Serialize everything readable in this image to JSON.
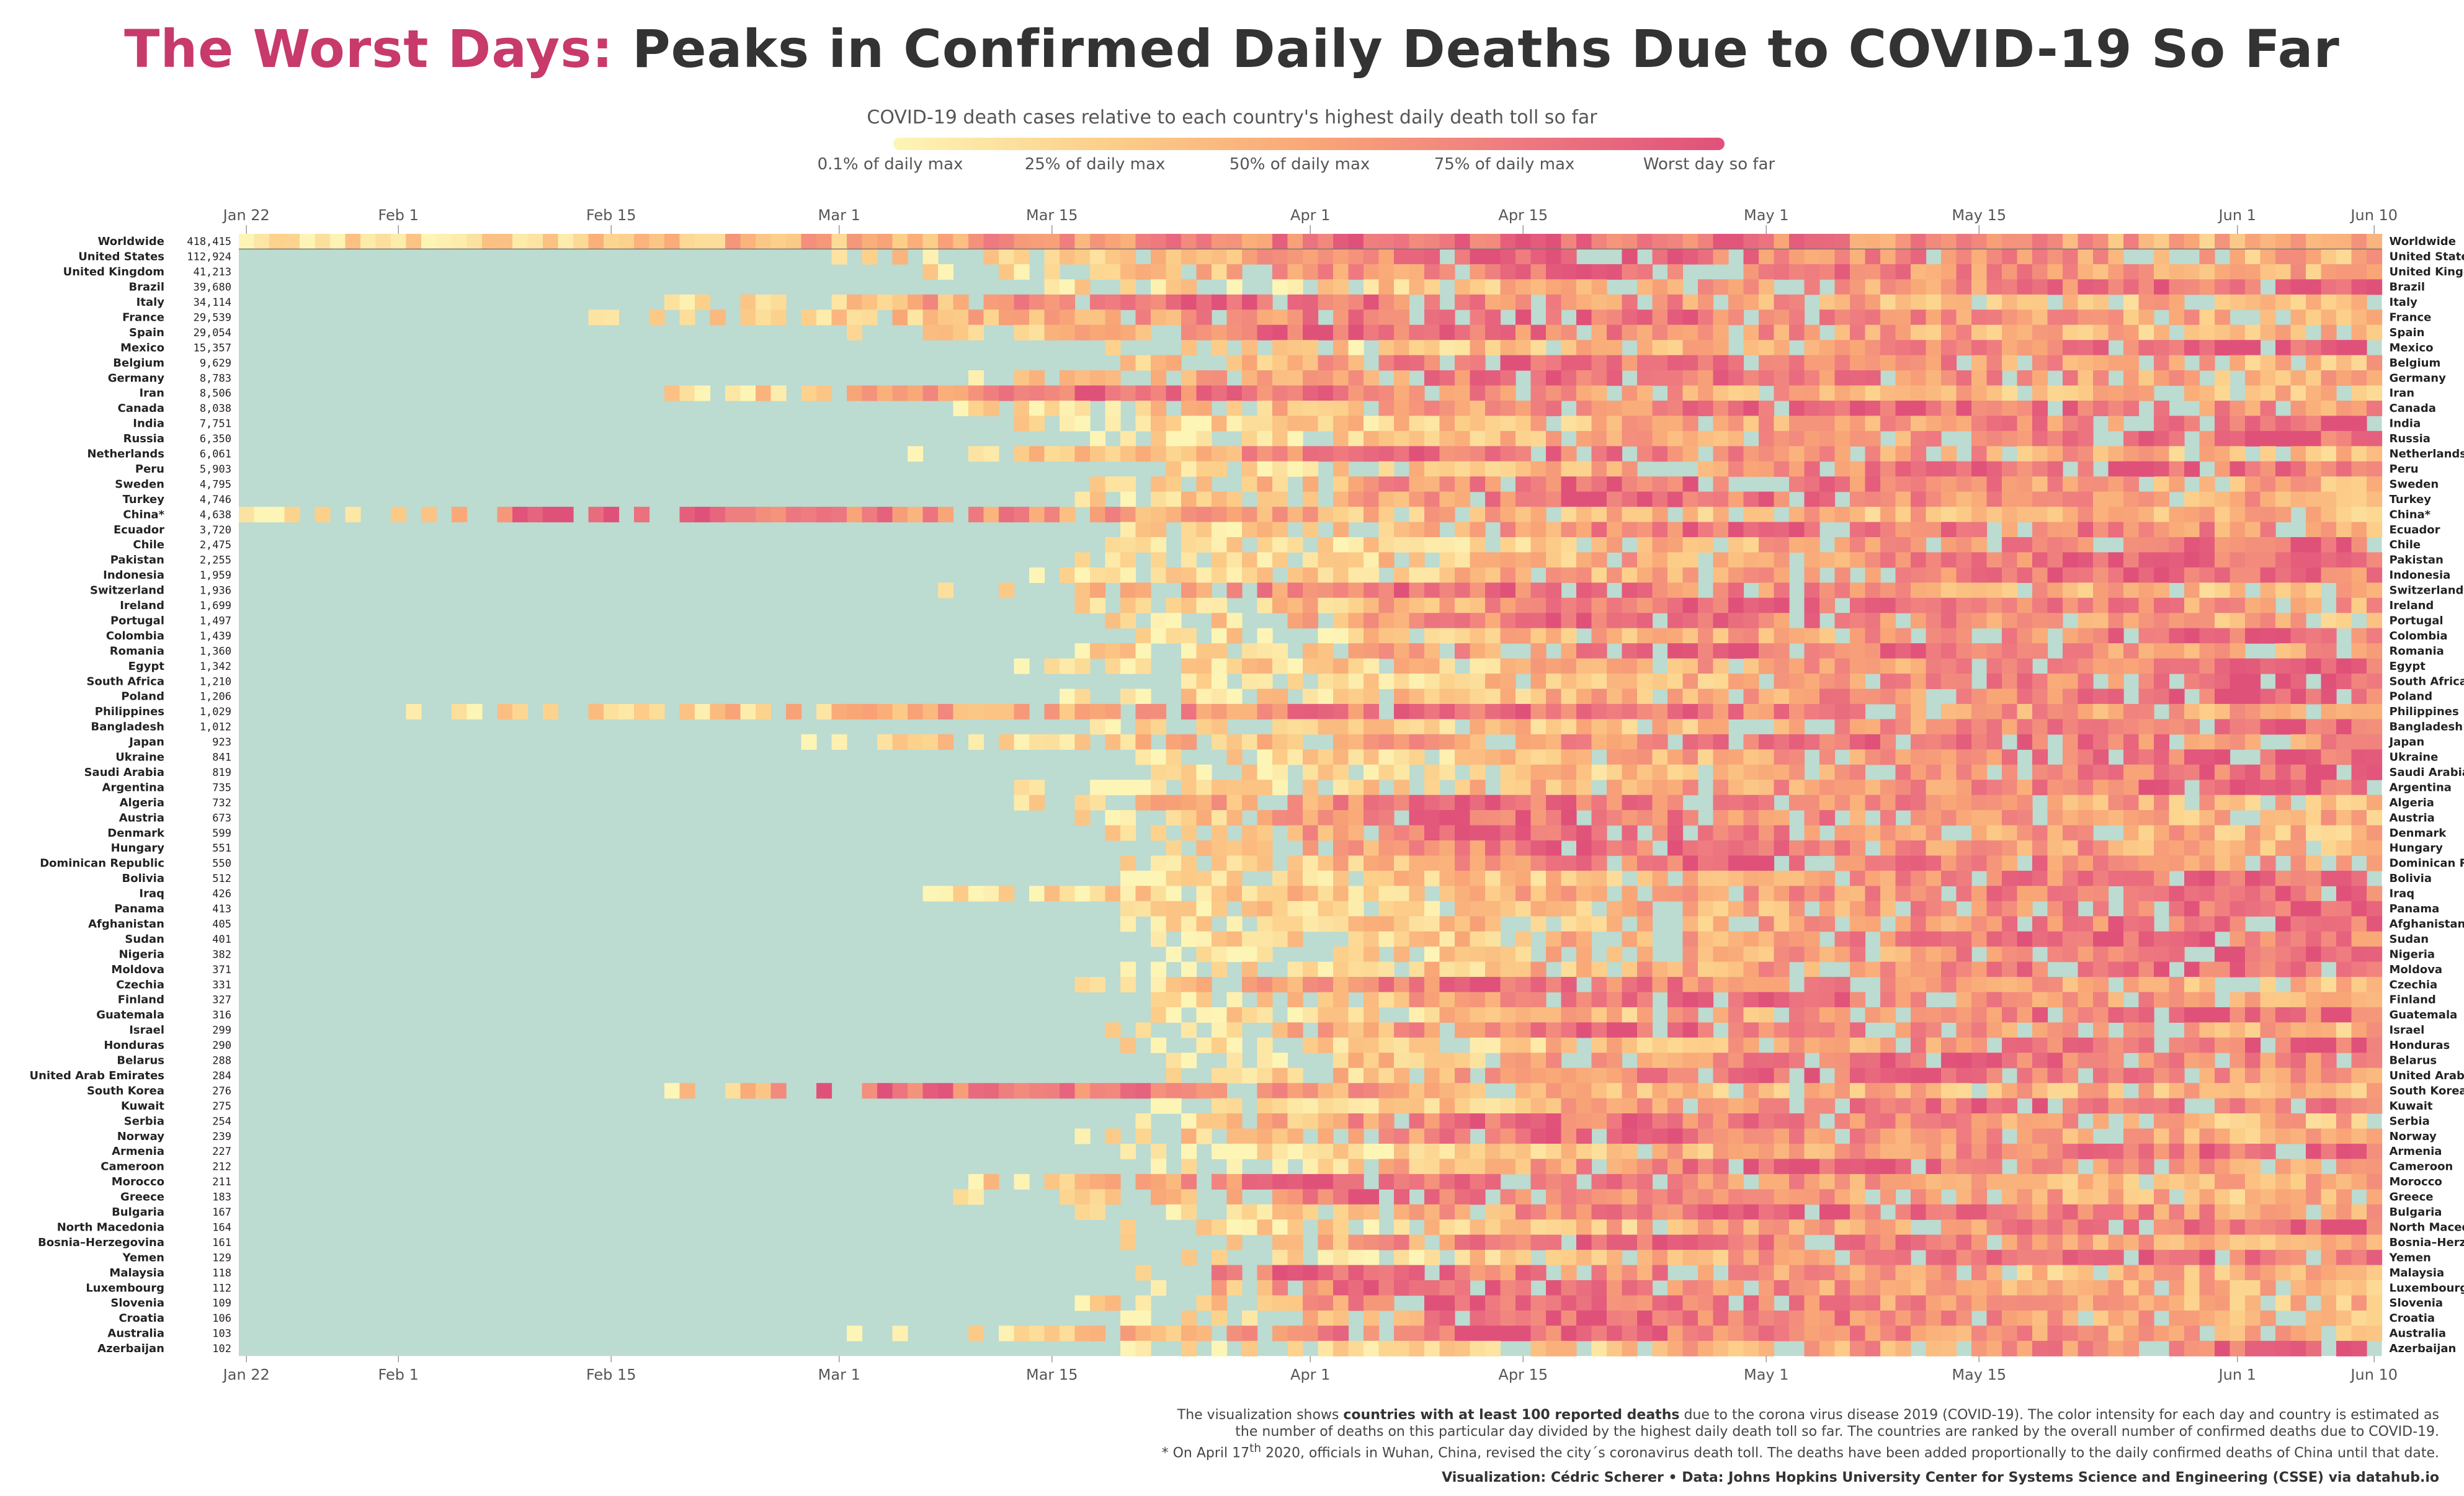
{
  "title": {
    "accent": "The Worst Days:",
    "main": " Peaks in Confirmed Daily Deaths Due to COVID-19 So Far"
  },
  "legend": {
    "title": "COVID-19 death cases relative to each country's highest daily death toll so far",
    "labels": [
      "0.1% of daily max",
      "25% of daily max",
      "50% of daily max",
      "75% of daily max",
      "Worst day so far"
    ],
    "colors": [
      "#fdf5b6",
      "#fcd08a",
      "#f9a777",
      "#ee7a80",
      "#e0517a"
    ]
  },
  "caption": {
    "p1_pre": "The visualization shows ",
    "p1_bold": "countries with at least 100 reported deaths",
    "p1_post": " due to the corona virus disease 2019 (COVID-19). The color intensity for each day and country is estimated as",
    "p2": "the number of deaths on this particular day divided by the highest daily death toll so far. The countries are ranked by the overall number of confirmed deaths due to COVID-19.",
    "p3_pre": "* On April 17",
    "p3_sup": "th",
    "p3_post": " 2020, officials in Wuhan, China, revised the city´s coronavirus death toll. The deaths have been added proportionally to the daily confirmed deaths of China until that date."
  },
  "credit": "Visualization: Cédric Scherer • Data: Johns Hopkins University Center for Systems Science and Engineering (CSSE) via datahub.io",
  "chart_data": {
    "type": "heatmap",
    "x_start": "Jan 22",
    "x_end": "Jun 10",
    "n_days": 141,
    "x_ticks": [
      {
        "label": "Jan 22",
        "day": 0
      },
      {
        "label": "Feb 1",
        "day": 10
      },
      {
        "label": "Feb 15",
        "day": 24
      },
      {
        "label": "Mar 1",
        "day": 39
      },
      {
        "label": "Mar 15",
        "day": 53
      },
      {
        "label": "Apr 1",
        "day": 70
      },
      {
        "label": "Apr 15",
        "day": 84
      },
      {
        "label": "May 1",
        "day": 100
      },
      {
        "label": "May 15",
        "day": 114
      },
      {
        "label": "Jun 1",
        "day": 131
      },
      {
        "label": "Jun 10",
        "day": 140
      }
    ],
    "no_death_color": "#bcdbd1",
    "countries": [
      {
        "name": "Worldwide",
        "total": "418,415",
        "start": 0,
        "peak": 84
      },
      {
        "name": "United States",
        "total": "112,924",
        "start": 37,
        "peak": 86
      },
      {
        "name": "United Kingdom",
        "total": "41,213",
        "start": 44,
        "peak": 88
      },
      {
        "name": "Brazil",
        "total": "39,680",
        "start": 53,
        "peak": 136
      },
      {
        "name": "Italy",
        "total": "34,114",
        "start": 28,
        "peak": 62
      },
      {
        "name": "France",
        "total": "29,539",
        "start": 22,
        "peak": 84
      },
      {
        "name": "Spain",
        "total": "29,054",
        "start": 40,
        "peak": 71
      },
      {
        "name": "Mexico",
        "total": "15,357",
        "start": 57,
        "peak": 134
      },
      {
        "name": "Belgium",
        "total": "9,629",
        "start": 53,
        "peak": 84
      },
      {
        "name": "Germany",
        "total": "8,783",
        "start": 47,
        "peak": 86
      },
      {
        "name": "Iran",
        "total": "8,506",
        "start": 28,
        "peak": 56
      },
      {
        "name": "Canada",
        "total": "8,038",
        "start": 47,
        "peak": 106
      },
      {
        "name": "India",
        "total": "7,751",
        "start": 50,
        "peak": 139
      },
      {
        "name": "Russia",
        "total": "6,350",
        "start": 56,
        "peak": 136
      },
      {
        "name": "Netherlands",
        "total": "6,061",
        "start": 44,
        "peak": 77
      },
      {
        "name": "Peru",
        "total": "5,903",
        "start": 57,
        "peak": 124
      },
      {
        "name": "Sweden",
        "total": "4,795",
        "start": 53,
        "peak": 90
      },
      {
        "name": "Turkey",
        "total": "4,746",
        "start": 55,
        "peak": 89
      },
      {
        "name": "China*",
        "total": "4,638",
        "start": 0,
        "peak": 21
      },
      {
        "name": "Ecuador",
        "total": "3,720",
        "start": 57,
        "peak": 102
      },
      {
        "name": "Chile",
        "total": "2,475",
        "start": 57,
        "peak": 138
      },
      {
        "name": "Pakistan",
        "total": "2,255",
        "start": 55,
        "peak": 128
      },
      {
        "name": "Indonesia",
        "total": "1,959",
        "start": 49,
        "peak": 126
      },
      {
        "name": "Switzerland",
        "total": "1,936",
        "start": 43,
        "peak": 76
      },
      {
        "name": "Ireland",
        "total": "1,699",
        "start": 55,
        "peak": 98
      },
      {
        "name": "Portugal",
        "total": "1,497",
        "start": 57,
        "peak": 88
      },
      {
        "name": "Colombia",
        "total": "1,439",
        "start": 58,
        "peak": 134
      },
      {
        "name": "Romania",
        "total": "1,360",
        "start": 55,
        "peak": 99
      },
      {
        "name": "Egypt",
        "total": "1,342",
        "start": 51,
        "peak": 138
      },
      {
        "name": "South Africa",
        "total": "1,210",
        "start": 60,
        "peak": 137
      },
      {
        "name": "Poland",
        "total": "1,206",
        "start": 51,
        "peak": 132
      },
      {
        "name": "Philippines",
        "total": "1,029",
        "start": 11,
        "peak": 84
      },
      {
        "name": "Bangladesh",
        "total": "1,012",
        "start": 56,
        "peak": 138
      },
      {
        "name": "Japan",
        "total": "923",
        "start": 36,
        "peak": 107
      },
      {
        "name": "Ukraine",
        "total": "841",
        "start": 58,
        "peak": 134
      },
      {
        "name": "Saudi Arabia",
        "total": "819",
        "start": 60,
        "peak": 137
      },
      {
        "name": "Argentina",
        "total": "735",
        "start": 49,
        "peak": 136
      },
      {
        "name": "Algeria",
        "total": "732",
        "start": 49,
        "peak": 82
      },
      {
        "name": "Austria",
        "total": "673",
        "start": 55,
        "peak": 79
      },
      {
        "name": "Denmark",
        "total": "599",
        "start": 57,
        "peak": 80
      },
      {
        "name": "Hungary",
        "total": "551",
        "start": 60,
        "peak": 88
      },
      {
        "name": "Dominican Republic",
        "total": "550",
        "start": 57,
        "peak": 98
      },
      {
        "name": "Bolivia",
        "total": "512",
        "start": 58,
        "peak": 132
      },
      {
        "name": "Iraq",
        "total": "426",
        "start": 45,
        "peak": 134
      },
      {
        "name": "Panama",
        "total": "413",
        "start": 56,
        "peak": 136
      },
      {
        "name": "Afghanistan",
        "total": "405",
        "start": 58,
        "peak": 134
      },
      {
        "name": "Sudan",
        "total": "401",
        "start": 60,
        "peak": 122
      },
      {
        "name": "Nigeria",
        "total": "382",
        "start": 60,
        "peak": 136
      },
      {
        "name": "Moldova",
        "total": "371",
        "start": 57,
        "peak": 128
      },
      {
        "name": "Czechia",
        "total": "331",
        "start": 55,
        "peak": 82
      },
      {
        "name": "Finland",
        "total": "327",
        "start": 60,
        "peak": 95
      },
      {
        "name": "Guatemala",
        "total": "316",
        "start": 58,
        "peak": 130
      },
      {
        "name": "Israel",
        "total": "299",
        "start": 57,
        "peak": 90
      },
      {
        "name": "Honduras",
        "total": "290",
        "start": 58,
        "peak": 137
      },
      {
        "name": "Belarus",
        "total": "288",
        "start": 60,
        "peak": 113
      },
      {
        "name": "United Arab Emirates",
        "total": "284",
        "start": 60,
        "peak": 103
      },
      {
        "name": "South Korea",
        "total": "276",
        "start": 28,
        "peak": 38
      },
      {
        "name": "Kuwait",
        "total": "275",
        "start": 60,
        "peak": 118
      },
      {
        "name": "Serbia",
        "total": "254",
        "start": 58,
        "peak": 81
      },
      {
        "name": "Norway",
        "total": "239",
        "start": 55,
        "peak": 86
      },
      {
        "name": "Armenia",
        "total": "227",
        "start": 58,
        "peak": 138
      },
      {
        "name": "Cameroon",
        "total": "212",
        "start": 58,
        "peak": 102
      },
      {
        "name": "Morocco",
        "total": "211",
        "start": 47,
        "peak": 71
      },
      {
        "name": "Greece",
        "total": "183",
        "start": 47,
        "peak": 74
      },
      {
        "name": "Bulgaria",
        "total": "167",
        "start": 55,
        "peak": 99
      },
      {
        "name": "North Macedonia",
        "total": "164",
        "start": 57,
        "peak": 139
      },
      {
        "name": "Bosnia–Herzegovina",
        "total": "161",
        "start": 58,
        "peak": 88
      },
      {
        "name": "Yemen",
        "total": "129",
        "start": 62,
        "peak": 129
      },
      {
        "name": "Malaysia",
        "total": "118",
        "start": 57,
        "peak": 68
      },
      {
        "name": "Luxembourg",
        "total": "112",
        "start": 58,
        "peak": 74
      },
      {
        "name": "Slovenia",
        "total": "109",
        "start": 55,
        "peak": 79
      },
      {
        "name": "Croatia",
        "total": "106",
        "start": 58,
        "peak": 86
      },
      {
        "name": "Australia",
        "total": "103",
        "start": 39,
        "peak": 84
      },
      {
        "name": "Azerbaijan",
        "total": "102",
        "start": 58,
        "peak": 138
      }
    ]
  }
}
